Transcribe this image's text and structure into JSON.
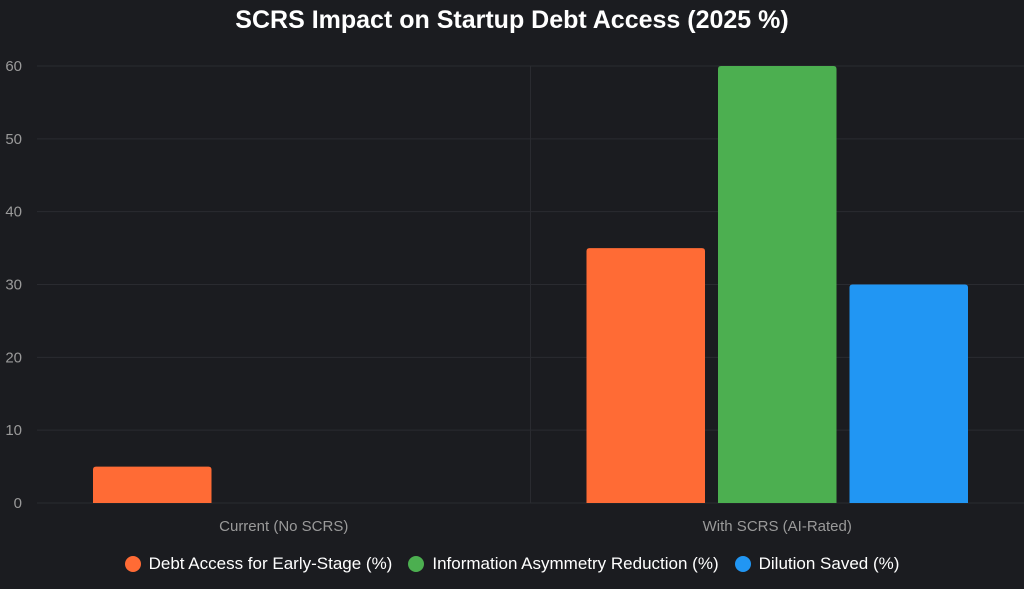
{
  "chart_data": {
    "type": "bar",
    "title": "SCRS Impact on Startup Debt Access (2025 %)",
    "categories": [
      "Current (No SCRS)",
      "With SCRS (AI-Rated)"
    ],
    "series": [
      {
        "name": "Debt Access for Early-Stage (%)",
        "color": "#ff6b35",
        "values": [
          5,
          35
        ]
      },
      {
        "name": "Information Asymmetry Reduction (%)",
        "color": "#4caf50",
        "values": [
          0,
          60
        ]
      },
      {
        "name": "Dilution Saved (%)",
        "color": "#2196f3",
        "values": [
          0,
          30
        ]
      }
    ],
    "ylim": [
      0,
      60
    ],
    "yticks": [
      0,
      10,
      20,
      30,
      40,
      50,
      60
    ],
    "grid": true,
    "legend": "bottom"
  }
}
